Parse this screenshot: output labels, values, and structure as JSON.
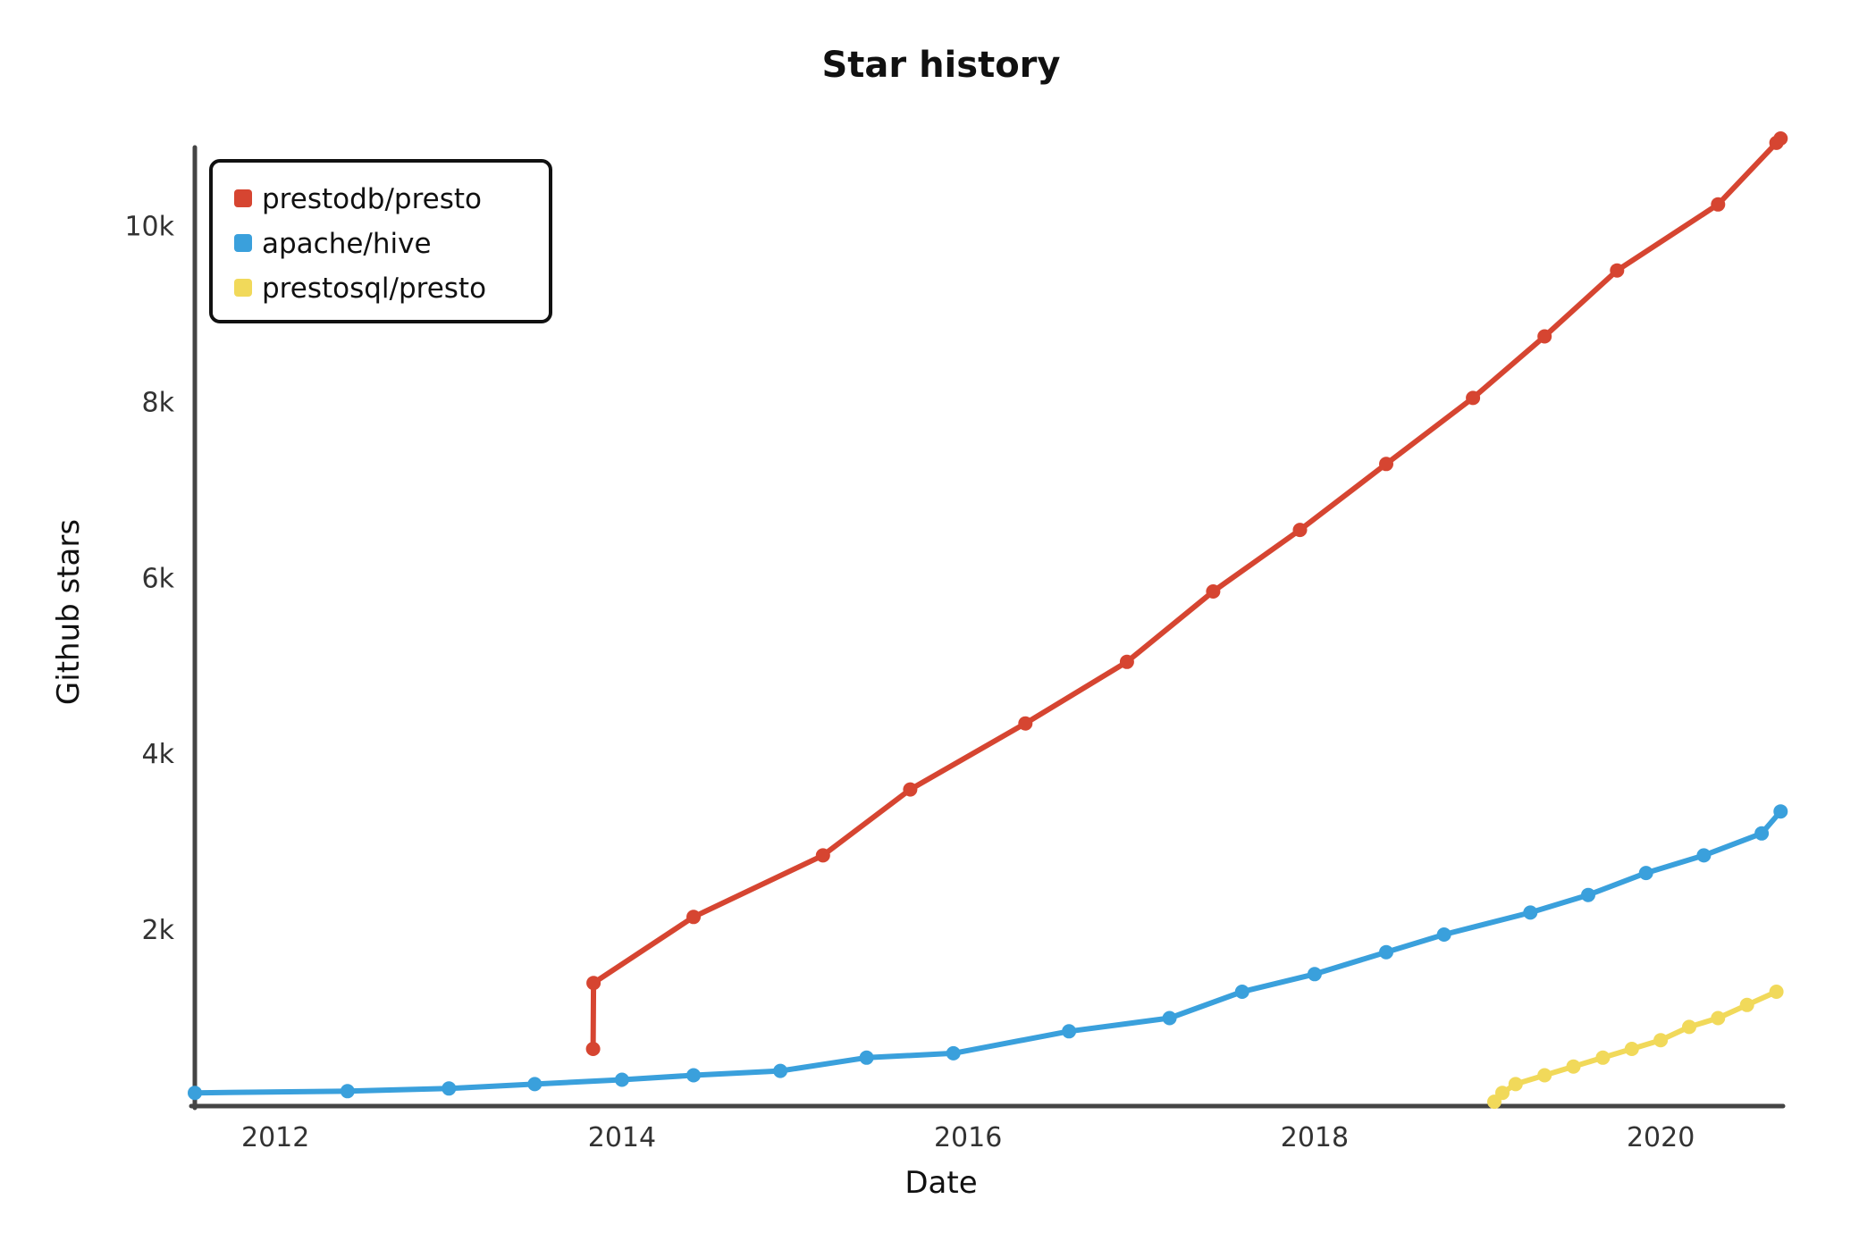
{
  "chart_data": {
    "type": "line",
    "title": "Star history",
    "xlabel": "Date",
    "ylabel": "Github stars",
    "xlim": [
      "2011-07-15",
      "2020-09-15"
    ],
    "ylim": [
      0,
      11000
    ],
    "xticks": [
      {
        "value": "2012-01-01",
        "label": "2012"
      },
      {
        "value": "2014-01-01",
        "label": "2014"
      },
      {
        "value": "2016-01-01",
        "label": "2016"
      },
      {
        "value": "2018-01-01",
        "label": "2018"
      },
      {
        "value": "2020-01-01",
        "label": "2020"
      }
    ],
    "yticks": [
      {
        "value": 2000,
        "label": "2k"
      },
      {
        "value": 4000,
        "label": "4k"
      },
      {
        "value": 6000,
        "label": "6k"
      },
      {
        "value": 8000,
        "label": "8k"
      },
      {
        "value": 10000,
        "label": "10k"
      }
    ],
    "grid": false,
    "legend_position": "top-left",
    "series": [
      {
        "name": "prestodb/presto",
        "color": "#d64531",
        "points": [
          {
            "x": "2013-11-01",
            "y": 650
          },
          {
            "x": "2013-11-02",
            "y": 1400
          },
          {
            "x": "2014-06-01",
            "y": 2150
          },
          {
            "x": "2015-03-01",
            "y": 2850
          },
          {
            "x": "2015-09-01",
            "y": 3600
          },
          {
            "x": "2016-05-01",
            "y": 4350
          },
          {
            "x": "2016-12-01",
            "y": 5050
          },
          {
            "x": "2017-06-01",
            "y": 5850
          },
          {
            "x": "2017-12-01",
            "y": 6550
          },
          {
            "x": "2018-06-01",
            "y": 7300
          },
          {
            "x": "2018-12-01",
            "y": 8050
          },
          {
            "x": "2019-05-01",
            "y": 8750
          },
          {
            "x": "2019-10-01",
            "y": 9500
          },
          {
            "x": "2020-05-01",
            "y": 10250
          },
          {
            "x": "2020-09-01",
            "y": 10950
          },
          {
            "x": "2020-09-10",
            "y": 11000
          }
        ]
      },
      {
        "name": "apache/hive",
        "color": "#3aa0dc",
        "points": [
          {
            "x": "2011-07-15",
            "y": 150
          },
          {
            "x": "2012-06-01",
            "y": 170
          },
          {
            "x": "2013-01-01",
            "y": 200
          },
          {
            "x": "2013-07-01",
            "y": 250
          },
          {
            "x": "2014-01-01",
            "y": 300
          },
          {
            "x": "2014-06-01",
            "y": 350
          },
          {
            "x": "2014-12-01",
            "y": 400
          },
          {
            "x": "2015-06-01",
            "y": 550
          },
          {
            "x": "2015-12-01",
            "y": 600
          },
          {
            "x": "2016-08-01",
            "y": 850
          },
          {
            "x": "2017-03-01",
            "y": 1000
          },
          {
            "x": "2017-08-01",
            "y": 1300
          },
          {
            "x": "2018-01-01",
            "y": 1500
          },
          {
            "x": "2018-06-01",
            "y": 1750
          },
          {
            "x": "2018-10-01",
            "y": 1950
          },
          {
            "x": "2019-04-01",
            "y": 2200
          },
          {
            "x": "2019-08-01",
            "y": 2400
          },
          {
            "x": "2019-12-01",
            "y": 2650
          },
          {
            "x": "2020-04-01",
            "y": 2850
          },
          {
            "x": "2020-08-01",
            "y": 3100
          },
          {
            "x": "2020-09-10",
            "y": 3350
          }
        ]
      },
      {
        "name": "prestosql/presto",
        "color": "#f1d95a",
        "points": [
          {
            "x": "2019-01-15",
            "y": 50
          },
          {
            "x": "2019-02-01",
            "y": 150
          },
          {
            "x": "2019-03-01",
            "y": 250
          },
          {
            "x": "2019-05-01",
            "y": 350
          },
          {
            "x": "2019-07-01",
            "y": 450
          },
          {
            "x": "2019-09-01",
            "y": 550
          },
          {
            "x": "2019-11-01",
            "y": 650
          },
          {
            "x": "2020-01-01",
            "y": 750
          },
          {
            "x": "2020-03-01",
            "y": 900
          },
          {
            "x": "2020-05-01",
            "y": 1000
          },
          {
            "x": "2020-07-01",
            "y": 1150
          },
          {
            "x": "2020-09-01",
            "y": 1300
          }
        ]
      }
    ]
  }
}
